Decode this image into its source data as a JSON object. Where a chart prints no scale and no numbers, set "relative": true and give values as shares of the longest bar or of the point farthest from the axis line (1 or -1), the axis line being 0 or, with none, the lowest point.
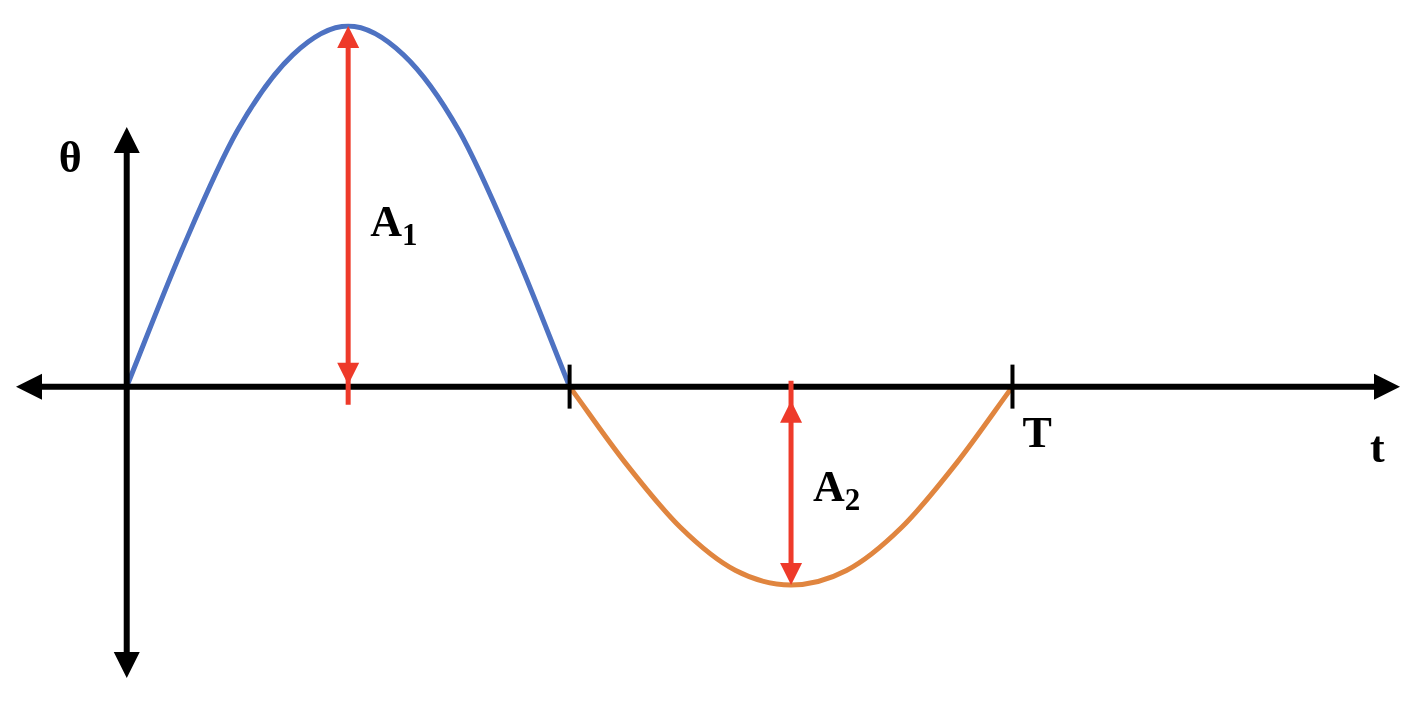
{
  "chart_data": {
    "type": "line",
    "relative": true,
    "xlabel": "t",
    "ylabel": "θ",
    "legend": false,
    "marker": "none",
    "categories": [
      null,
      null,
      null,
      null,
      null,
      null,
      null,
      null,
      null,
      null,
      null,
      null,
      null,
      null,
      null,
      null,
      null,
      null,
      null,
      null,
      null,
      null,
      null,
      null,
      null,
      null
    ],
    "series": [
      {
        "color": "#4e72c2",
        "values": [
          null,
          null,
          0,
          0.38,
          0.71,
          0.92,
          1,
          0.92,
          0.71,
          0.38,
          0,
          null,
          null,
          null,
          null,
          null,
          null,
          null,
          null,
          null,
          null,
          null,
          null,
          null,
          null,
          null
        ]
      },
      {
        "color": "#e0853f",
        "values": [
          null,
          null,
          null,
          null,
          null,
          null,
          null,
          null,
          null,
          null,
          0,
          -0.21,
          -0.39,
          -0.51,
          -0.55,
          -0.51,
          -0.39,
          -0.21,
          0,
          null,
          null,
          null,
          null,
          null,
          null,
          null
        ]
      }
    ],
    "annotations": [
      "A$_{1}$",
      "A$_{2}$",
      "T"
    ]
  }
}
